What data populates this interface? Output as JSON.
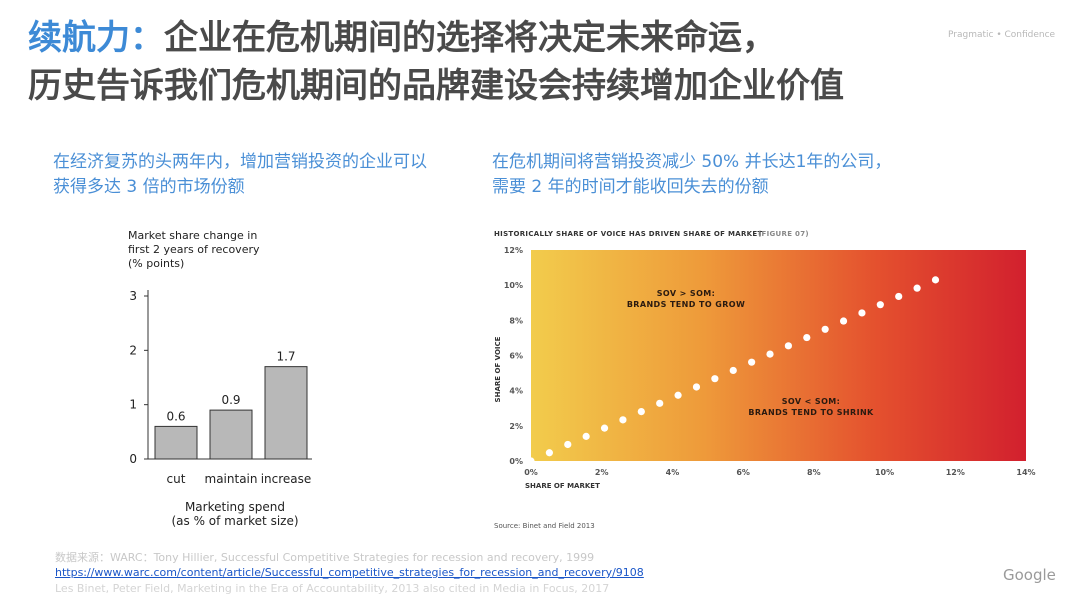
{
  "header": {
    "title_accent": "续航力：",
    "title_line1": "企业在危机期间的选择将决定未来命运，",
    "title_line2": "历史告诉我们危机期间的品牌建设会持续增加企业价值",
    "brand_tag": "Pragmatic • Confidence"
  },
  "left_subtitle": "在经济复苏的头两年内，增加营销投资的企业可以获得多达 3 倍的市场份额",
  "right_subtitle_line1": "在危机期间将营销投资减少 50% 并长达1年的公司，",
  "right_subtitle_line2": "需要 2 年的时间才能收回失去的份额",
  "chart_data": [
    {
      "type": "bar",
      "title_lines": [
        "Market share change in",
        "first 2 years of recovery",
        "(% points)"
      ],
      "categories": [
        "cut",
        "maintain",
        "increase"
      ],
      "values": [
        0.6,
        0.9,
        1.7
      ],
      "value_labels": [
        "0.6",
        "0.9",
        "1.7"
      ],
      "ylim": [
        0,
        3
      ],
      "yticks": [
        "0",
        "1",
        "2",
        "3"
      ],
      "xlabel_lines": [
        "Marketing spend",
        "(as % of market size)"
      ],
      "bar_color": "#b8b8b8"
    },
    {
      "type": "scatter",
      "title": "HISTORICALLY SHARE OF VOICE HAS DRIVEN SHARE OF MARKET",
      "title_suffix": "(FIGURE 07)",
      "xlabel": "SHARE OF MARKET",
      "ylabel": "SHARE OF VOICE",
      "xlim": [
        0,
        14
      ],
      "ylim": [
        0,
        12
      ],
      "xticks": [
        "0%",
        "2%",
        "4%",
        "6%",
        "8%",
        "10%",
        "12%",
        "14%"
      ],
      "yticks": [
        "0%",
        "2%",
        "4%",
        "6%",
        "8%",
        "10%",
        "12%"
      ],
      "x": [
        0,
        0.52,
        1.04,
        1.56,
        2.08,
        2.6,
        3.12,
        3.64,
        4.16,
        4.68,
        5.2,
        5.72,
        6.24,
        6.76,
        7.28,
        7.8,
        8.32,
        8.84,
        9.36,
        9.88,
        10.4,
        10.92,
        11.44
      ],
      "y": [
        0,
        0.47,
        0.94,
        1.4,
        1.87,
        2.34,
        2.81,
        3.28,
        3.74,
        4.21,
        4.68,
        5.15,
        5.62,
        6.08,
        6.55,
        7.02,
        7.49,
        7.96,
        8.42,
        8.89,
        9.36,
        9.83,
        10.3
      ],
      "annotations": [
        {
          "text": [
            "SOV > SOM:",
            "BRANDS TEND TO GROW"
          ]
        },
        {
          "text": [
            "SOV < SOM:",
            "BRANDS TEND TO SHRINK"
          ]
        }
      ],
      "gradient": [
        "#f2cc4c",
        "#ee9a3a",
        "#e4502e",
        "#d2202e"
      ],
      "point_color": "#ffffff",
      "source": "Source: Binet and Field 2013"
    }
  ],
  "footer": {
    "source_line": "数据来源：WARC：Tony Hillier, Successful Competitive Strategies for recession and recovery, 1999",
    "link": "https://www.warc.com/content/article/Successful_competitive_strategies_for_recession_and_recovery/9108",
    "line3": "Les Binet, Peter Field, Marketing in the Era of Accountability, 2013 also cited in Media in Focus, 2017",
    "logo": "Google"
  }
}
